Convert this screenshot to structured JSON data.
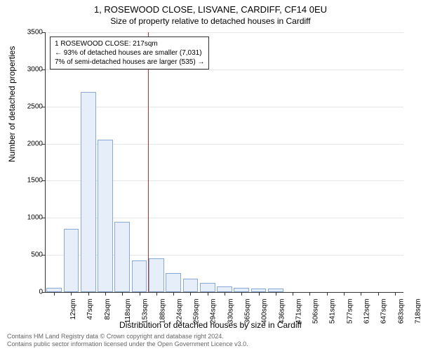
{
  "title": "1, ROSEWOOD CLOSE, LISVANE, CARDIFF, CF14 0EU",
  "subtitle": "Size of property relative to detached houses in Cardiff",
  "y_axis_label": "Number of detached properties",
  "x_axis_label": "Distribution of detached houses by size in Cardiff",
  "chart": {
    "type": "histogram",
    "ylim": [
      0,
      3500
    ],
    "ytick_step": 500,
    "bar_fill": "#e6eef9",
    "bar_stroke": "#8aa9d6",
    "grid_color": "#e6e6e6",
    "background_color": "#ffffff",
    "categories": [
      "12sqm",
      "47sqm",
      "82sqm",
      "118sqm",
      "153sqm",
      "188sqm",
      "224sqm",
      "259sqm",
      "294sqm",
      "330sqm",
      "365sqm",
      "400sqm",
      "436sqm",
      "471sqm",
      "506sqm",
      "541sqm",
      "577sqm",
      "612sqm",
      "647sqm",
      "683sqm",
      "718sqm"
    ],
    "values": [
      60,
      850,
      2700,
      2050,
      950,
      430,
      450,
      260,
      180,
      120,
      80,
      60,
      50,
      50,
      0,
      0,
      0,
      0,
      0,
      0,
      0
    ],
    "reference_line": {
      "x_index": 6,
      "color": "#d62728"
    },
    "annotation": {
      "lines": [
        "1 ROSEWOOD CLOSE: 217sqm",
        "← 93% of detached houses are smaller (7,031)",
        "7% of semi-detached houses are larger (535) →"
      ]
    }
  },
  "footer": {
    "line1": "Contains HM Land Registry data © Crown copyright and database right 2024.",
    "line2": "Contains public sector information licensed under the Open Government Licence v3.0."
  }
}
